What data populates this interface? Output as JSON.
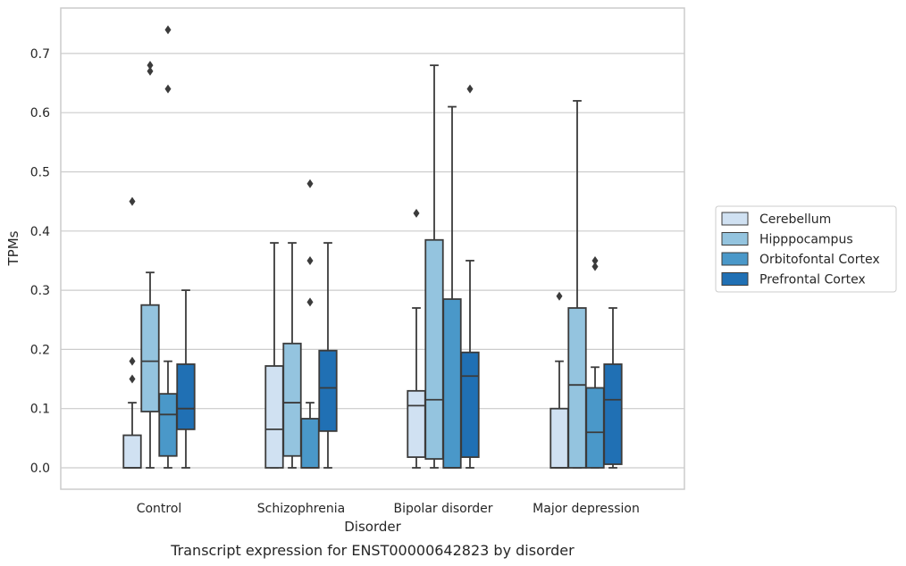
{
  "chart_data": {
    "type": "box",
    "caption": "Transcript expression for ENST00000642823 by disorder",
    "xlabel": "Disorder",
    "ylabel": "TPMs",
    "ylim": [
      -0.035,
      0.775
    ],
    "yticks": [
      0.0,
      0.1,
      0.2,
      0.3,
      0.4,
      0.5,
      0.6,
      0.7
    ],
    "ytick_labels": [
      "0.0",
      "0.1",
      "0.2",
      "0.3",
      "0.4",
      "0.5",
      "0.6",
      "0.7"
    ],
    "grid": "horizontal",
    "legend_position": "right",
    "categories": [
      "Control",
      "Schizophrenia",
      "Bipolar disorder",
      "Major depression"
    ],
    "series": [
      {
        "name": "Cerebellum",
        "color": "#d0e1f2",
        "boxes": [
          {
            "whislo": 0.0,
            "q1": 0.0,
            "med": 0.0,
            "q3": 0.055,
            "whishi": 0.11,
            "fliers": [
              0.15,
              0.18,
              0.45
            ]
          },
          {
            "whislo": 0.0,
            "q1": 0.0,
            "med": 0.065,
            "q3": 0.172,
            "whishi": 0.38,
            "fliers": []
          },
          {
            "whislo": 0.0,
            "q1": 0.018,
            "med": 0.105,
            "q3": 0.13,
            "whishi": 0.27,
            "fliers": [
              0.43
            ]
          },
          {
            "whislo": 0.0,
            "q1": 0.0,
            "med": 0.0,
            "q3": 0.1,
            "whishi": 0.18,
            "fliers": [
              0.29
            ]
          }
        ]
      },
      {
        "name": "Hipppocampus",
        "color": "#94c4df",
        "boxes": [
          {
            "whislo": 0.0,
            "q1": 0.095,
            "med": 0.18,
            "q3": 0.275,
            "whishi": 0.33,
            "fliers": [
              0.67,
              0.68
            ]
          },
          {
            "whislo": 0.0,
            "q1": 0.02,
            "med": 0.11,
            "q3": 0.21,
            "whishi": 0.38,
            "fliers": []
          },
          {
            "whislo": 0.0,
            "q1": 0.015,
            "med": 0.115,
            "q3": 0.385,
            "whishi": 0.68,
            "fliers": []
          },
          {
            "whislo": 0.0,
            "q1": 0.0,
            "med": 0.14,
            "q3": 0.27,
            "whishi": 0.62,
            "fliers": []
          }
        ]
      },
      {
        "name": "Orbitofontal Cortex",
        "color": "#4a98c9",
        "boxes": [
          {
            "whislo": 0.0,
            "q1": 0.02,
            "med": 0.09,
            "q3": 0.125,
            "whishi": 0.18,
            "fliers": [
              0.64,
              0.74
            ]
          },
          {
            "whislo": 0.0,
            "q1": 0.0,
            "med": 0.0,
            "q3": 0.083,
            "whishi": 0.11,
            "fliers": [
              0.28,
              0.35,
              0.48
            ]
          },
          {
            "whislo": 0.0,
            "q1": 0.0,
            "med": 0.0,
            "q3": 0.285,
            "whishi": 0.61,
            "fliers": []
          },
          {
            "whislo": 0.0,
            "q1": 0.0,
            "med": 0.06,
            "q3": 0.135,
            "whishi": 0.17,
            "fliers": [
              0.34,
              0.35
            ]
          }
        ]
      },
      {
        "name": "Prefrontal Cortex",
        "color": "#2070b4",
        "boxes": [
          {
            "whislo": 0.0,
            "q1": 0.065,
            "med": 0.1,
            "q3": 0.175,
            "whishi": 0.3,
            "fliers": []
          },
          {
            "whislo": 0.0,
            "q1": 0.062,
            "med": 0.135,
            "q3": 0.198,
            "whishi": 0.38,
            "fliers": []
          },
          {
            "whislo": 0.0,
            "q1": 0.018,
            "med": 0.155,
            "q3": 0.195,
            "whishi": 0.35,
            "fliers": [
              0.64
            ]
          },
          {
            "whislo": 0.0,
            "q1": 0.006,
            "med": 0.115,
            "q3": 0.175,
            "whishi": 0.27,
            "fliers": []
          }
        ]
      }
    ]
  }
}
